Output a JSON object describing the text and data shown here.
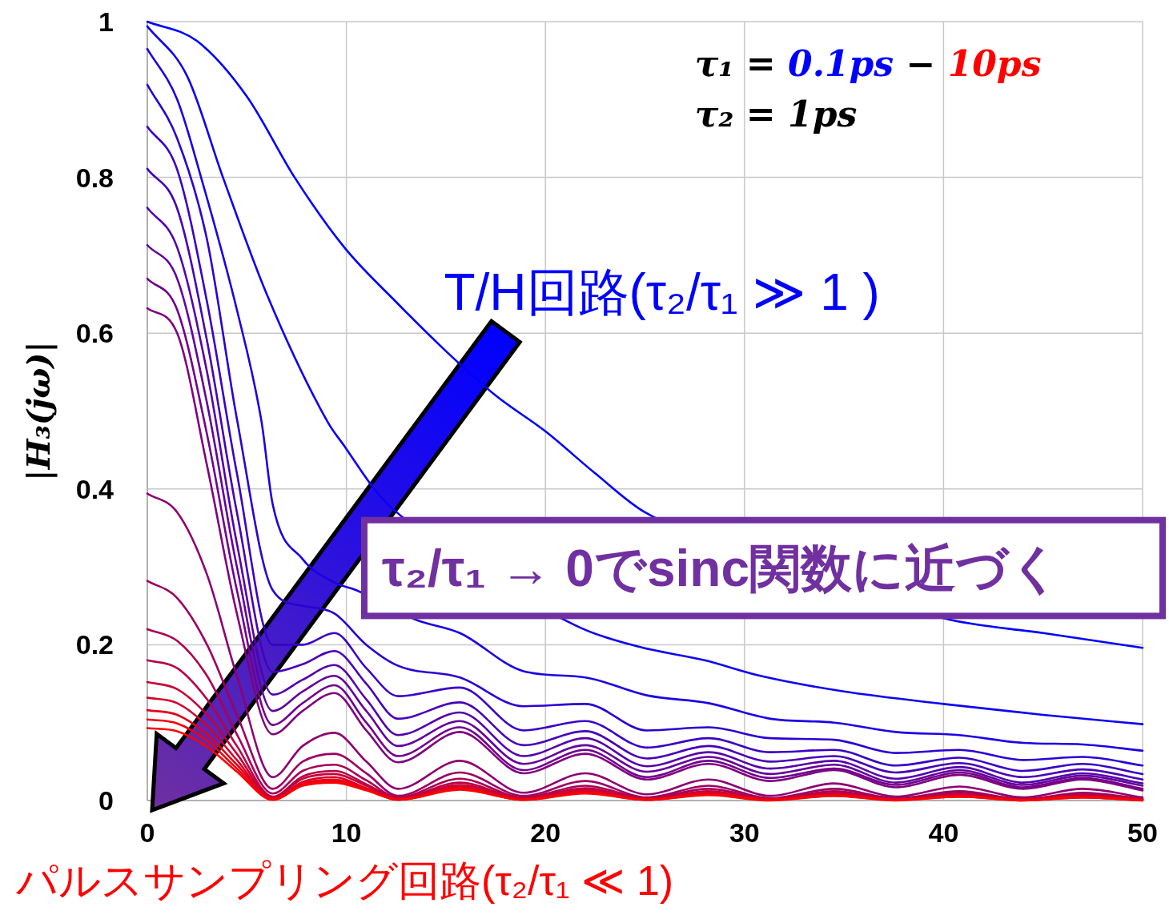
{
  "chart_data": {
    "type": "line",
    "ylabel": "|H₃(jω)|",
    "xlim": [
      0,
      50
    ],
    "ylim": [
      0,
      1
    ],
    "xticks": [
      0,
      10,
      20,
      30,
      40,
      50
    ],
    "yticks": [
      0,
      0.2,
      0.4,
      0.6,
      0.8,
      1
    ],
    "grid": true,
    "annotations": [
      "τ₁ = 0.1ps − 10ps",
      "τ₂ = 1ps",
      "T/H回路(τ₂/τ₁ ≫ 1 )",
      "τ₂/τ₁ → 0でsinc関数に近づく",
      "パルスサンプリング回路(τ₂/τ₁ ≪ 1)"
    ],
    "series": [
      {
        "color": "#0000ff",
        "x": [
          0,
          2.5,
          5,
          7.4,
          9.9,
          12.5,
          15,
          17.5,
          20,
          22.5,
          25,
          40,
          45,
          50
        ],
        "values": [
          1.0,
          0.975,
          0.904,
          0.8,
          0.71,
          0.64,
          0.577,
          0.52,
          0.474,
          0.42,
          0.37,
          0.234,
          0.215,
          0.196
        ]
      },
      {
        "color": "#0e00f1",
        "x": [
          0,
          2,
          3.8,
          6,
          9.06,
          9.9,
          11.4,
          12.3,
          21.5,
          24.6,
          28,
          30.8,
          35,
          40,
          45,
          50
        ],
        "values": [
          0.994,
          0.93,
          0.8,
          0.65,
          0.486,
          0.455,
          0.4,
          0.375,
          0.225,
          0.198,
          0.18,
          0.16,
          0.14,
          0.124,
          0.11,
          0.098
        ]
      },
      {
        "color": "#1c00e3",
        "x": [
          0,
          1.5,
          2.7,
          4.5,
          5.74,
          6.3,
          7.8,
          9.4,
          10.5,
          13.5,
          15.7,
          18.9,
          22,
          25.1,
          28.2,
          31.3,
          34.5,
          37.6,
          40.8,
          44,
          47,
          50
        ],
        "values": [
          0.965,
          0.9,
          0.8,
          0.63,
          0.486,
          0.38,
          0.31,
          0.28,
          0.27,
          0.232,
          0.215,
          0.166,
          0.158,
          0.135,
          0.125,
          0.105,
          0.1,
          0.088,
          0.084,
          0.074,
          0.072,
          0.064
        ]
      },
      {
        "color": "#2b00d4",
        "values": [
          0.919,
          0.85,
          0.72,
          0.49,
          0.27,
          0.25,
          0.24,
          0.2,
          0.173,
          0.158,
          0.121,
          0.124,
          0.09,
          0.094,
          0.08,
          0.078,
          0.061,
          0.065,
          0.052,
          0.056,
          0.045
        ]
      },
      {
        "color": "#3900c6",
        "values": [
          0.865,
          0.81,
          0.64,
          0.42,
          0.2,
          0.2,
          0.215,
          0.17,
          0.134,
          0.145,
          0.09,
          0.102,
          0.068,
          0.08,
          0.062,
          0.065,
          0.045,
          0.055,
          0.038,
          0.047,
          0.034
        ]
      },
      {
        "color": "#4700b8",
        "values": [
          0.811,
          0.76,
          0.59,
          0.37,
          0.165,
          0.175,
          0.192,
          0.15,
          0.105,
          0.126,
          0.071,
          0.089,
          0.054,
          0.07,
          0.05,
          0.057,
          0.036,
          0.048,
          0.03,
          0.04,
          0.027
        ]
      },
      {
        "color": "#5500aa",
        "values": [
          0.761,
          0.71,
          0.55,
          0.33,
          0.136,
          0.155,
          0.174,
          0.13,
          0.084,
          0.113,
          0.057,
          0.08,
          0.044,
          0.062,
          0.041,
          0.051,
          0.028,
          0.043,
          0.023,
          0.035,
          0.022
        ]
      },
      {
        "color": "#63009c",
        "values": [
          0.713,
          0.67,
          0.51,
          0.3,
          0.115,
          0.14,
          0.16,
          0.115,
          0.07,
          0.102,
          0.047,
          0.071,
          0.037,
          0.056,
          0.034,
          0.046,
          0.023,
          0.039,
          0.02,
          0.032,
          0.019
        ]
      },
      {
        "color": "#71008e",
        "values": [
          0.67,
          0.63,
          0.47,
          0.27,
          0.097,
          0.125,
          0.148,
          0.1,
          0.057,
          0.094,
          0.039,
          0.065,
          0.03,
          0.051,
          0.029,
          0.041,
          0.02,
          0.036,
          0.017,
          0.029,
          0.015
        ]
      },
      {
        "color": "#80007f",
        "values": [
          0.632,
          0.6,
          0.43,
          0.24,
          0.085,
          0.115,
          0.138,
          0.09,
          0.049,
          0.088,
          0.035,
          0.06,
          0.027,
          0.047,
          0.025,
          0.039,
          0.017,
          0.033,
          0.015,
          0.027,
          0.013
        ]
      },
      {
        "color": "#8e0071",
        "values": [
          0.394,
          0.37,
          0.29,
          0.16,
          0.03,
          0.07,
          0.087,
          0.05,
          0.015,
          0.051,
          0.01,
          0.035,
          0.008,
          0.027,
          0.006,
          0.022,
          0.005,
          0.018,
          0.004,
          0.015,
          0.004
        ]
      },
      {
        "color": "#9c0063",
        "values": [
          0.282,
          0.26,
          0.2,
          0.11,
          0.015,
          0.05,
          0.06,
          0.035,
          0.006,
          0.036,
          0.006,
          0.025,
          0.004,
          0.019,
          0.003,
          0.015,
          0.003,
          0.012,
          0.002,
          0.01,
          0.002
        ]
      },
      {
        "color": "#aa0055",
        "values": [
          0.22,
          0.205,
          0.16,
          0.085,
          0.009,
          0.038,
          0.046,
          0.026,
          0.004,
          0.028,
          0.004,
          0.019,
          0.003,
          0.015,
          0.002,
          0.012,
          0.002,
          0.01,
          0.002,
          0.008,
          0.002
        ]
      },
      {
        "color": "#b80047",
        "values": [
          0.18,
          0.17,
          0.13,
          0.07,
          0.005,
          0.031,
          0.038,
          0.021,
          0.003,
          0.023,
          0.003,
          0.016,
          0.002,
          0.012,
          0.002,
          0.01,
          0.001,
          0.008,
          0.001,
          0.007,
          0.001
        ]
      },
      {
        "color": "#c60039",
        "values": [
          0.152,
          0.143,
          0.11,
          0.06,
          0.003,
          0.028,
          0.034,
          0.019,
          0.002,
          0.02,
          0.002,
          0.014,
          0.002,
          0.011,
          0.001,
          0.009,
          0.001,
          0.007,
          0.001,
          0.006,
          0.001
        ]
      },
      {
        "color": "#d5002a",
        "values": [
          0.132,
          0.125,
          0.096,
          0.052,
          0.002,
          0.024,
          0.03,
          0.016,
          0.002,
          0.018,
          0.002,
          0.013,
          0.001,
          0.01,
          0.001,
          0.008,
          0.001,
          0.006,
          0.001,
          0.005,
          0.001
        ]
      },
      {
        "color": "#e3001c",
        "values": [
          0.116,
          0.11,
          0.085,
          0.046,
          0.002,
          0.022,
          0.027,
          0.015,
          0.001,
          0.016,
          0.001,
          0.011,
          0.001,
          0.009,
          0.001,
          0.007,
          0.001,
          0.006,
          0.001,
          0.005,
          0.001
        ]
      },
      {
        "color": "#f1000e",
        "values": [
          0.104,
          0.099,
          0.077,
          0.041,
          0.001,
          0.02,
          0.025,
          0.014,
          0.001,
          0.015,
          0.001,
          0.01,
          0.001,
          0.008,
          0.001,
          0.006,
          0.001,
          0.005,
          0,
          0.004,
          0
        ]
      },
      {
        "color": "#ff0000",
        "values": [
          0.093,
          0.089,
          0.069,
          0.037,
          0.001,
          0.019,
          0.023,
          0.013,
          0.001,
          0.014,
          0.001,
          0.009,
          0.001,
          0.007,
          0,
          0.006,
          0,
          0.005,
          0,
          0.004,
          0
        ]
      }
    ],
    "x": [
      0,
      1.5,
      3,
      4.5,
      6.3,
      7.8,
      9.4,
      11,
      12.6,
      15.7,
      18.9,
      22,
      25.1,
      28.2,
      31.3,
      34.5,
      37.6,
      40.8,
      44,
      47,
      50
    ]
  }
}
